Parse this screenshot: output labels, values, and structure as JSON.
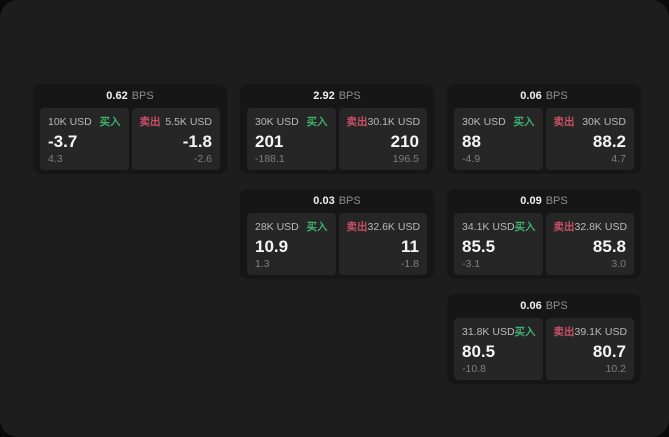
{
  "labels": {
    "buy": "买入",
    "sell": "卖出",
    "bps": "BPS"
  },
  "colors": {
    "buy_green": "#3fae6d",
    "sell_red": "#c75067",
    "page_bg": "#1d1d1d",
    "card_bg": "#161616",
    "panel_bg": "#262626"
  },
  "cards": [
    {
      "bps": "0.62",
      "buy": {
        "notional": "10K USD",
        "price": "-3.7",
        "delta": "4.3"
      },
      "sell": {
        "notional": "5.5K USD",
        "price": "-1.8",
        "delta": "-2.6"
      }
    },
    {
      "bps": "2.92",
      "buy": {
        "notional": "30K USD",
        "price": "201",
        "delta": "-188.1"
      },
      "sell": {
        "notional": "30.1K USD",
        "price": "210",
        "delta": "196.5"
      }
    },
    {
      "bps": "0.06",
      "buy": {
        "notional": "30K USD",
        "price": "88",
        "delta": "-4.9"
      },
      "sell": {
        "notional": "30K USD",
        "price": "88.2",
        "delta": "4.7"
      }
    },
    {
      "bps": "0.03",
      "buy": {
        "notional": "28K USD",
        "price": "10.9",
        "delta": "1.3"
      },
      "sell": {
        "notional": "32.6K USD",
        "price": "11",
        "delta": "-1.8"
      }
    },
    {
      "bps": "0.09",
      "buy": {
        "notional": "34.1K USD",
        "price": "85.5",
        "delta": "-3.1"
      },
      "sell": {
        "notional": "32.8K USD",
        "price": "85.8",
        "delta": "3.0"
      }
    },
    {
      "bps": "0.06",
      "buy": {
        "notional": "31.8K USD",
        "price": "80.5",
        "delta": "-10.8"
      },
      "sell": {
        "notional": "39.1K USD",
        "price": "80.7",
        "delta": "10.2"
      }
    }
  ]
}
